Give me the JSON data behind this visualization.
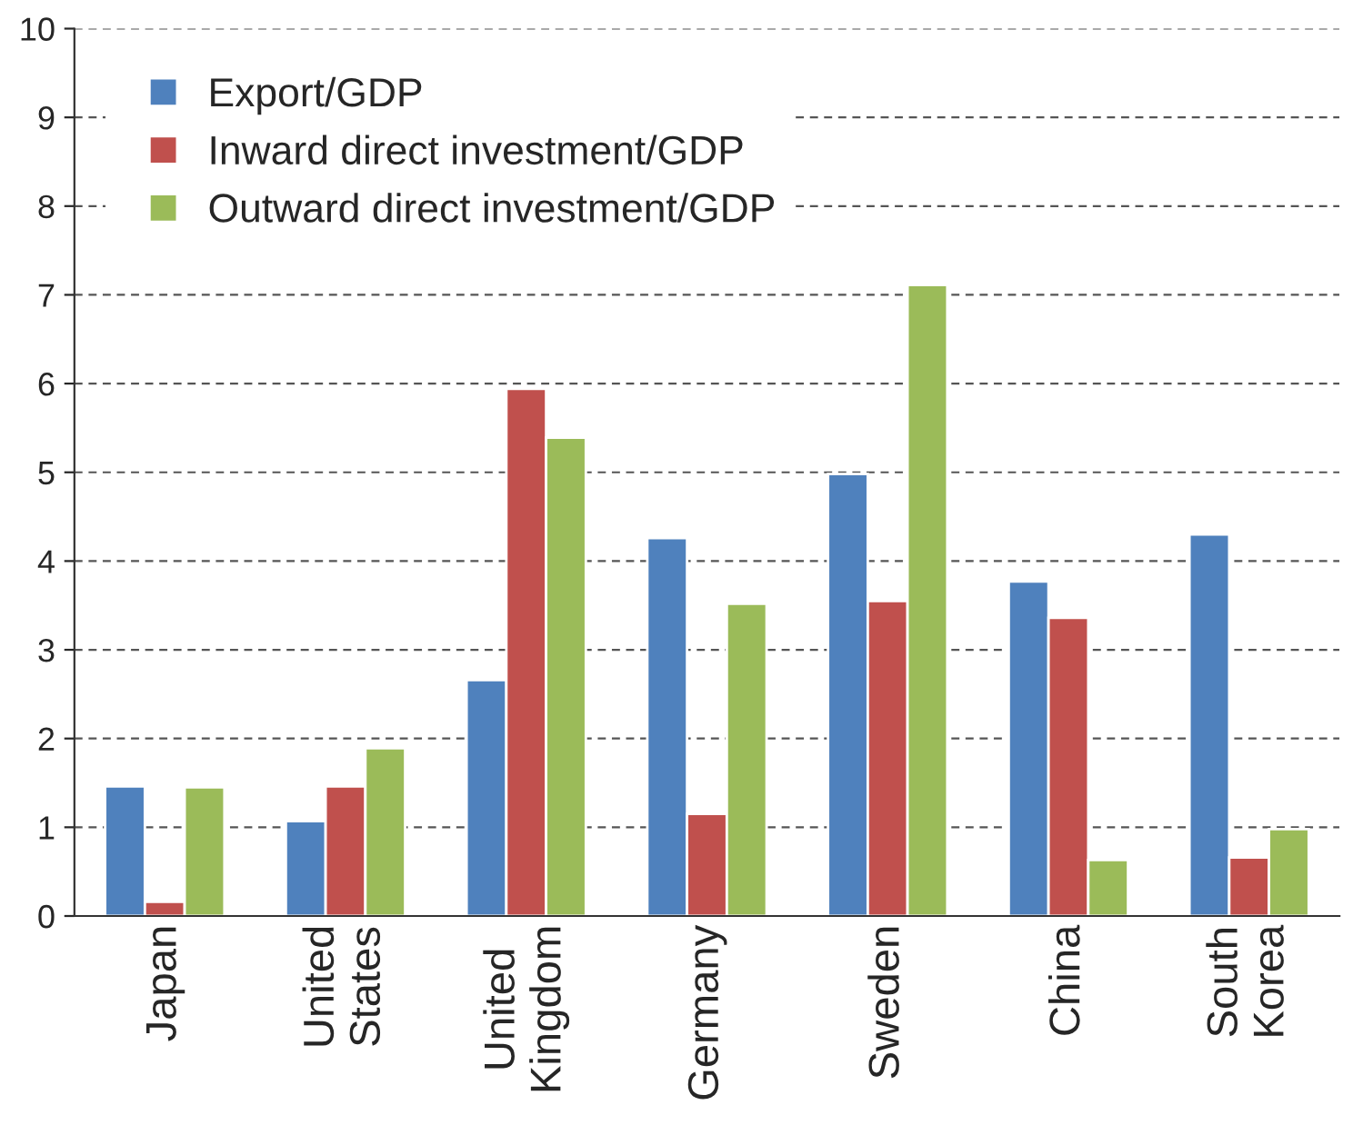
{
  "chart_data": {
    "type": "bar",
    "categories": [
      "Japan",
      "United\nStates",
      "United\nKingdom",
      "Germany",
      "Sweden",
      "China",
      "South\nKorea"
    ],
    "series": [
      {
        "name": "Export/GDP",
        "color": "#4f81bd",
        "values": [
          1.46,
          1.07,
          2.66,
          4.26,
          4.98,
          3.77,
          4.3
        ]
      },
      {
        "name": "Inward direct investment/GDP",
        "color": "#c0504d",
        "values": [
          0.16,
          1.46,
          5.94,
          1.15,
          3.55,
          3.36,
          0.66
        ]
      },
      {
        "name": "Outward direct investment/GDP",
        "color": "#9bbb59",
        "values": [
          1.45,
          1.89,
          5.39,
          3.52,
          7.11,
          0.63,
          0.98
        ]
      }
    ],
    "ylim": [
      0,
      10
    ],
    "yticks": [
      0,
      1,
      2,
      3,
      4,
      5,
      6,
      7,
      8,
      9,
      10
    ],
    "grid": "y",
    "legend": "top left",
    "marker": "square"
  }
}
